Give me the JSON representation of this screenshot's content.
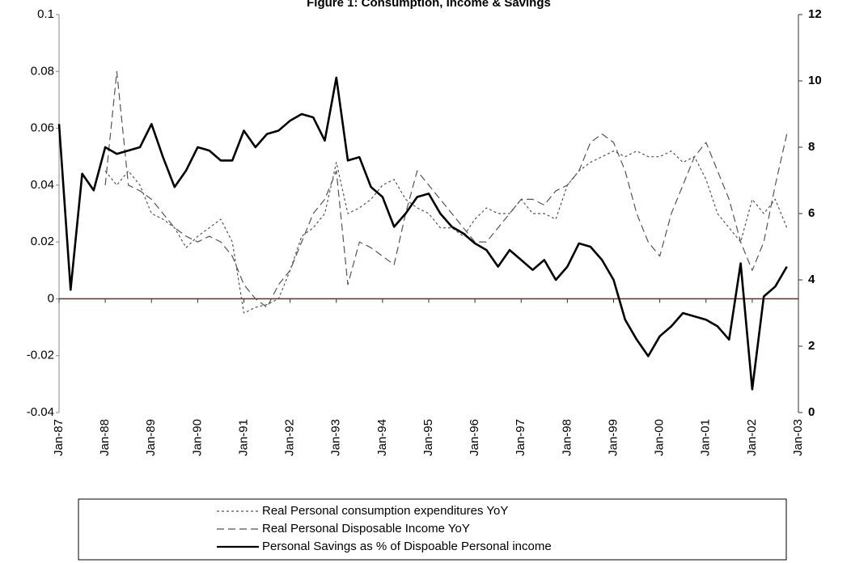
{
  "chart_data": {
    "type": "line",
    "title": "Figure 1: Consumption, Income & Savings",
    "x": [
      "Jan-87",
      "Apr-87",
      "Jul-87",
      "Oct-87",
      "Jan-88",
      "Apr-88",
      "Jul-88",
      "Oct-88",
      "Jan-89",
      "Apr-89",
      "Jul-89",
      "Oct-89",
      "Jan-90",
      "Apr-90",
      "Jul-90",
      "Oct-90",
      "Jan-91",
      "Apr-91",
      "Jul-91",
      "Oct-91",
      "Jan-92",
      "Apr-92",
      "Jul-92",
      "Oct-92",
      "Jan-93",
      "Apr-93",
      "Jul-93",
      "Oct-93",
      "Jan-94",
      "Apr-94",
      "Jul-94",
      "Oct-94",
      "Jan-95",
      "Apr-95",
      "Jul-95",
      "Oct-95",
      "Jan-96",
      "Apr-96",
      "Jul-96",
      "Oct-96",
      "Jan-97",
      "Apr-97",
      "Jul-97",
      "Oct-97",
      "Jan-98",
      "Apr-98",
      "Jul-98",
      "Oct-98",
      "Jan-99",
      "Apr-99",
      "Jul-99",
      "Oct-99",
      "Jan-00",
      "Apr-00",
      "Jul-00",
      "Oct-00",
      "Jan-01",
      "Apr-01",
      "Jul-01",
      "Oct-01",
      "Jan-02",
      "Apr-02",
      "Jul-02",
      "Oct-02"
    ],
    "series": [
      {
        "name": "Real Personal consumption expenditures YoY",
        "color": "#555555",
        "dash": "3,3",
        "width": 1.2,
        "values": [
          null,
          null,
          null,
          null,
          0.045,
          0.04,
          0.045,
          0.04,
          0.03,
          0.028,
          0.025,
          0.018,
          0.022,
          0.025,
          0.028,
          0.02,
          -0.005,
          -0.003,
          -0.002,
          0.0,
          0.01,
          0.022,
          0.025,
          0.03,
          0.048,
          0.03,
          0.032,
          0.035,
          0.04,
          0.042,
          0.035,
          0.032,
          0.03,
          0.025,
          0.025,
          0.022,
          0.028,
          0.032,
          0.03,
          0.03,
          0.035,
          0.03,
          0.03,
          0.028,
          0.04,
          0.045,
          0.048,
          0.05,
          0.052,
          0.05,
          0.052,
          0.05,
          0.05,
          0.052,
          0.048,
          0.05,
          0.042,
          0.03,
          0.025,
          0.02,
          0.035,
          0.03,
          0.035,
          0.025
        ]
      },
      {
        "name": "Real Personal Disposable Income YoY",
        "color": "#555555",
        "dash": "9,5",
        "width": 1.2,
        "values": [
          null,
          null,
          null,
          null,
          0.04,
          0.08,
          0.04,
          0.038,
          0.035,
          0.03,
          0.025,
          0.022,
          0.02,
          0.022,
          0.02,
          0.015,
          0.005,
          0.0,
          -0.003,
          0.005,
          0.01,
          0.02,
          0.03,
          0.035,
          0.045,
          0.005,
          0.02,
          0.018,
          0.015,
          0.012,
          0.03,
          0.045,
          0.04,
          0.035,
          0.03,
          0.025,
          0.02,
          0.02,
          0.025,
          0.03,
          0.035,
          0.035,
          0.033,
          0.038,
          0.04,
          0.045,
          0.055,
          0.058,
          0.055,
          0.045,
          0.03,
          0.02,
          0.015,
          0.03,
          0.04,
          0.05,
          0.055,
          0.045,
          0.035,
          0.02,
          0.01,
          0.02,
          0.04,
          0.058
        ]
      },
      {
        "name": "Personal Savings as % of Dispoable Personal income",
        "color": "#000000",
        "width": 2.6,
        "axis": "y2",
        "values": [
          8.7,
          3.7,
          7.2,
          6.7,
          8.0,
          7.8,
          7.9,
          8.0,
          8.7,
          7.7,
          6.8,
          7.3,
          8.0,
          7.9,
          7.6,
          7.6,
          8.5,
          8.0,
          8.4,
          8.5,
          8.8,
          9.0,
          8.9,
          8.2,
          10.1,
          7.6,
          7.7,
          6.8,
          6.5,
          5.6,
          6.0,
          6.5,
          6.6,
          6.0,
          5.6,
          5.4,
          5.1,
          4.9,
          4.4,
          4.9,
          4.6,
          4.3,
          4.6,
          4.0,
          4.4,
          5.1,
          5.0,
          4.6,
          4.0,
          2.8,
          2.2,
          1.7,
          2.3,
          2.6,
          3.0,
          2.9,
          2.8,
          2.6,
          2.2,
          4.5,
          0.7,
          3.5,
          3.8,
          4.4
        ]
      }
    ],
    "xticks": [
      "Jan-87",
      "Jan-88",
      "Jan-89",
      "Jan-90",
      "Jan-91",
      "Jan-92",
      "Jan-93",
      "Jan-94",
      "Jan-95",
      "Jan-96",
      "Jan-97",
      "Jan-98",
      "Jan-99",
      "Jan-00",
      "Jan-01",
      "Jan-02",
      "Jan-03"
    ],
    "ylim": [
      -0.04,
      0.1
    ],
    "yticks": [
      -0.04,
      -0.02,
      0,
      0.02,
      0.04,
      0.06,
      0.08,
      0.1
    ],
    "y2lim": [
      0,
      12
    ],
    "y2ticks": [
      0,
      2,
      4,
      6,
      8,
      10,
      12
    ],
    "legend": "bottom"
  }
}
